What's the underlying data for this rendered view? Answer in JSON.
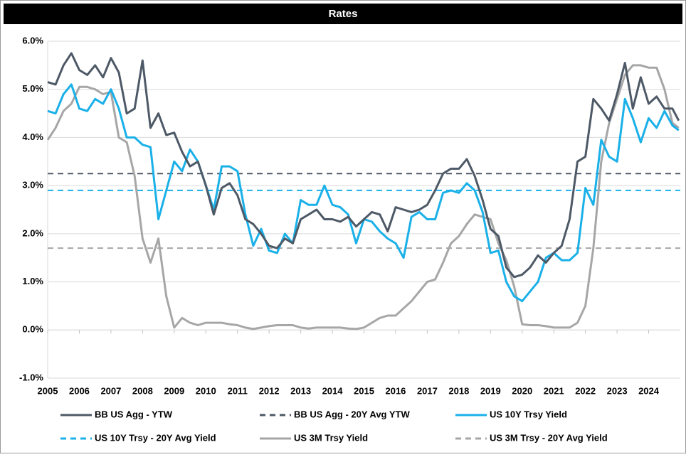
{
  "chart_data": {
    "type": "line",
    "title": "Rates",
    "x": [
      2005,
      2005.25,
      2005.5,
      2005.75,
      2006,
      2006.25,
      2006.5,
      2006.75,
      2007,
      2007.25,
      2007.5,
      2007.75,
      2008,
      2008.25,
      2008.5,
      2008.75,
      2009,
      2009.25,
      2009.5,
      2009.75,
      2010,
      2010.25,
      2010.5,
      2010.75,
      2011,
      2011.25,
      2011.5,
      2011.75,
      2012,
      2012.25,
      2012.5,
      2012.75,
      2013,
      2013.25,
      2013.5,
      2013.75,
      2014,
      2014.25,
      2014.5,
      2014.75,
      2015,
      2015.25,
      2015.5,
      2015.75,
      2016,
      2016.25,
      2016.5,
      2016.75,
      2017,
      2017.25,
      2017.5,
      2017.75,
      2018,
      2018.25,
      2018.5,
      2018.75,
      2019,
      2019.25,
      2019.5,
      2019.75,
      2020,
      2020.25,
      2020.5,
      2020.75,
      2021,
      2021.25,
      2021.5,
      2021.75,
      2022,
      2022.25,
      2022.5,
      2022.75,
      2023,
      2023.25,
      2023.5,
      2023.75,
      2024,
      2024.25,
      2024.5,
      2024.75,
      2024.95
    ],
    "series": [
      {
        "name": "BB US Agg - YTW",
        "color": "#4d5966",
        "values": [
          5.15,
          5.1,
          5.5,
          5.75,
          5.4,
          5.3,
          5.5,
          5.25,
          5.65,
          5.35,
          4.5,
          4.6,
          5.6,
          4.2,
          4.5,
          4.05,
          4.1,
          3.7,
          3.4,
          3.5,
          3.0,
          2.4,
          2.95,
          3.05,
          2.8,
          2.3,
          2.2,
          2.0,
          1.75,
          1.7,
          1.9,
          1.8,
          2.3,
          2.4,
          2.5,
          2.3,
          2.3,
          2.25,
          2.35,
          2.15,
          2.3,
          2.45,
          2.4,
          2.05,
          2.55,
          2.5,
          2.45,
          2.5,
          2.6,
          2.9,
          3.25,
          3.35,
          3.35,
          3.55,
          3.2,
          2.7,
          2.1,
          1.95,
          1.3,
          1.1,
          1.15,
          1.3,
          1.55,
          1.4,
          1.6,
          1.75,
          2.3,
          3.5,
          3.6,
          4.8,
          4.6,
          4.35,
          4.9,
          5.55,
          4.6,
          5.25,
          4.7,
          4.85,
          4.6,
          4.6,
          4.35
        ]
      },
      {
        "name": "US 10Y Trsy Yield",
        "color": "#1ab0e8",
        "values": [
          4.55,
          4.5,
          4.9,
          5.1,
          4.6,
          4.55,
          4.8,
          4.7,
          5.0,
          4.6,
          4.0,
          4.0,
          3.85,
          3.8,
          2.3,
          2.9,
          3.5,
          3.3,
          3.75,
          3.5,
          3.0,
          2.5,
          3.4,
          3.4,
          3.3,
          2.4,
          1.75,
          2.1,
          1.65,
          1.6,
          2.0,
          1.8,
          2.7,
          2.6,
          2.6,
          3.0,
          2.6,
          2.55,
          2.4,
          1.8,
          2.3,
          2.25,
          2.05,
          1.9,
          1.8,
          1.5,
          2.35,
          2.45,
          2.3,
          2.3,
          2.85,
          2.9,
          2.85,
          3.05,
          2.9,
          2.45,
          1.6,
          1.65,
          1.0,
          0.7,
          0.6,
          0.8,
          1.0,
          1.5,
          1.6,
          1.45,
          1.45,
          1.6,
          2.95,
          2.6,
          3.95,
          3.6,
          3.5,
          4.8,
          4.4,
          3.9,
          4.4,
          4.2,
          4.55,
          4.25,
          4.15
        ]
      },
      {
        "name": "US 3M Trsy Yield",
        "color": "#a6a6a6",
        "values": [
          3.95,
          4.2,
          4.55,
          4.7,
          5.05,
          5.05,
          5.0,
          4.9,
          4.95,
          4.0,
          3.9,
          3.2,
          1.9,
          1.4,
          1.9,
          0.7,
          0.05,
          0.25,
          0.15,
          0.1,
          0.15,
          0.15,
          0.15,
          0.12,
          0.1,
          0.05,
          0.02,
          0.05,
          0.08,
          0.1,
          0.1,
          0.1,
          0.05,
          0.03,
          0.05,
          0.05,
          0.05,
          0.05,
          0.03,
          0.02,
          0.05,
          0.15,
          0.25,
          0.3,
          0.3,
          0.45,
          0.6,
          0.8,
          1.0,
          1.05,
          1.4,
          1.8,
          1.95,
          2.2,
          2.4,
          2.35,
          2.3,
          1.8,
          1.45,
          0.9,
          0.12,
          0.1,
          0.1,
          0.08,
          0.05,
          0.05,
          0.05,
          0.15,
          0.5,
          1.7,
          3.5,
          4.3,
          4.8,
          5.3,
          5.5,
          5.5,
          5.45,
          5.45,
          5.0,
          4.3,
          4.2
        ]
      }
    ],
    "reference_lines": [
      {
        "name": "BB US Agg - 20Y Avg YTW",
        "color": "#4d5966",
        "value": 3.25
      },
      {
        "name": "US 10Y Trsy - 20Y Avg Yield",
        "color": "#1ab0e8",
        "value": 2.9
      },
      {
        "name": "US 3M Trsy - 20Y Avg Yield",
        "color": "#a6a6a6",
        "value": 1.7
      }
    ],
    "xlim": [
      2005,
      2025
    ],
    "xticks": [
      2005,
      2006,
      2007,
      2008,
      2009,
      2010,
      2011,
      2012,
      2013,
      2014,
      2015,
      2016,
      2017,
      2018,
      2019,
      2020,
      2021,
      2022,
      2023,
      2024
    ],
    "ylim": [
      -1,
      6
    ],
    "yticks": [
      {
        "value": -1,
        "label": "-1.0%"
      },
      {
        "value": 0,
        "label": "0.0%"
      },
      {
        "value": 1,
        "label": "1.0%"
      },
      {
        "value": 2,
        "label": "2.0%"
      },
      {
        "value": 3,
        "label": "3.0%"
      },
      {
        "value": 4,
        "label": "4.0%"
      },
      {
        "value": 5,
        "label": "5.0%"
      },
      {
        "value": 6,
        "label": "6.0%"
      }
    ],
    "grid": true
  }
}
